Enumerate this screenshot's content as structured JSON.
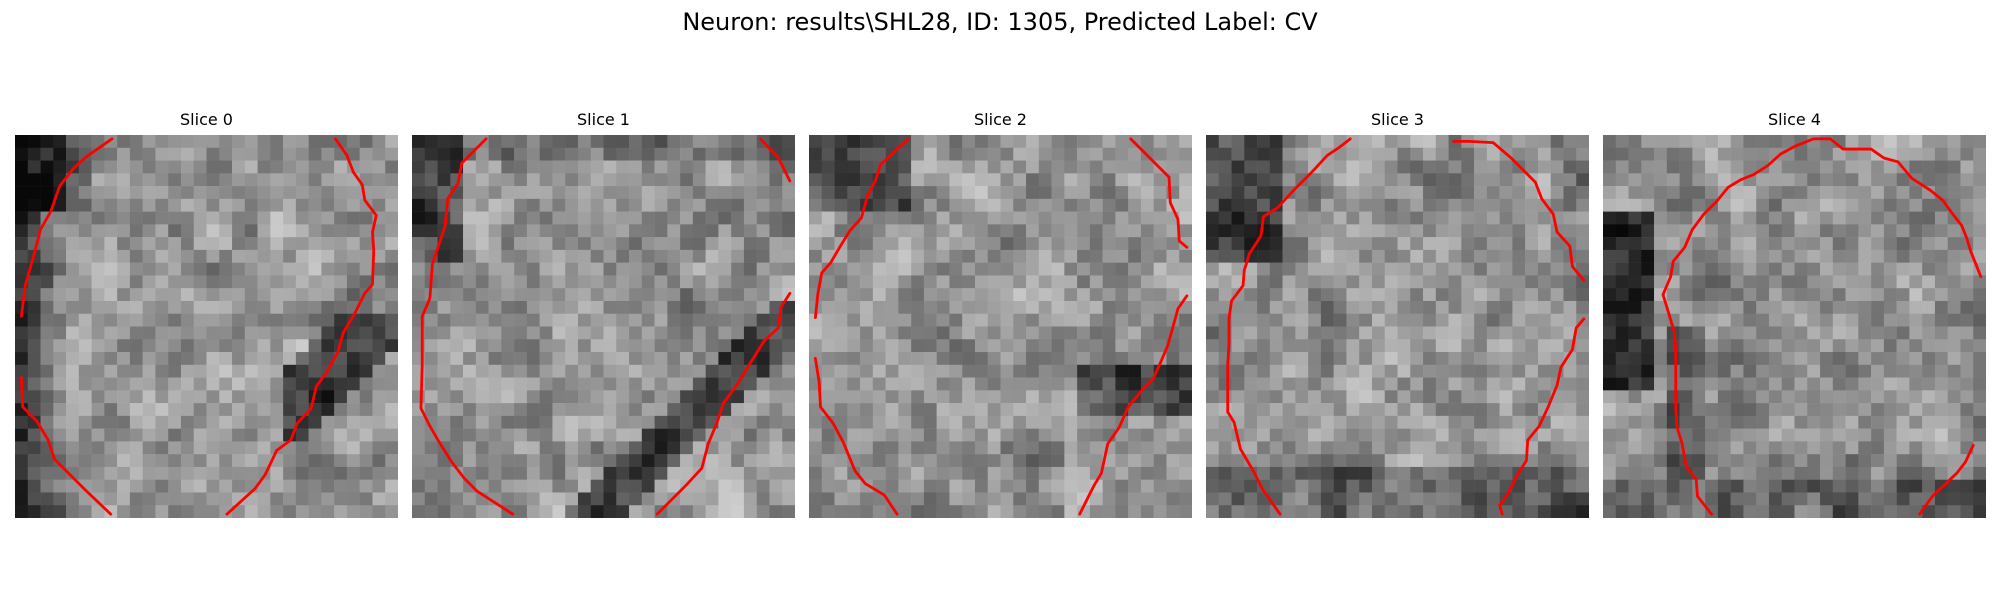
{
  "figure": {
    "title": "Neuron: results\\SHL28, ID: 1305, Predicted Label: CV",
    "contour_color": "#ff0000",
    "colormap": "gray"
  },
  "slices": [
    {
      "title": "Slice 0",
      "seed": 11,
      "dark_regions": "left-edge, lower-right"
    },
    {
      "title": "Slice 1",
      "seed": 23,
      "dark_regions": "left-top, lower-right band"
    },
    {
      "title": "Slice 2",
      "seed": 37,
      "dark_regions": "top-left, right band"
    },
    {
      "title": "Slice 3",
      "seed": 41,
      "dark_regions": "top-left, bottom"
    },
    {
      "title": "Slice 4",
      "seed": 59,
      "dark_regions": "left column, bottom"
    }
  ]
}
